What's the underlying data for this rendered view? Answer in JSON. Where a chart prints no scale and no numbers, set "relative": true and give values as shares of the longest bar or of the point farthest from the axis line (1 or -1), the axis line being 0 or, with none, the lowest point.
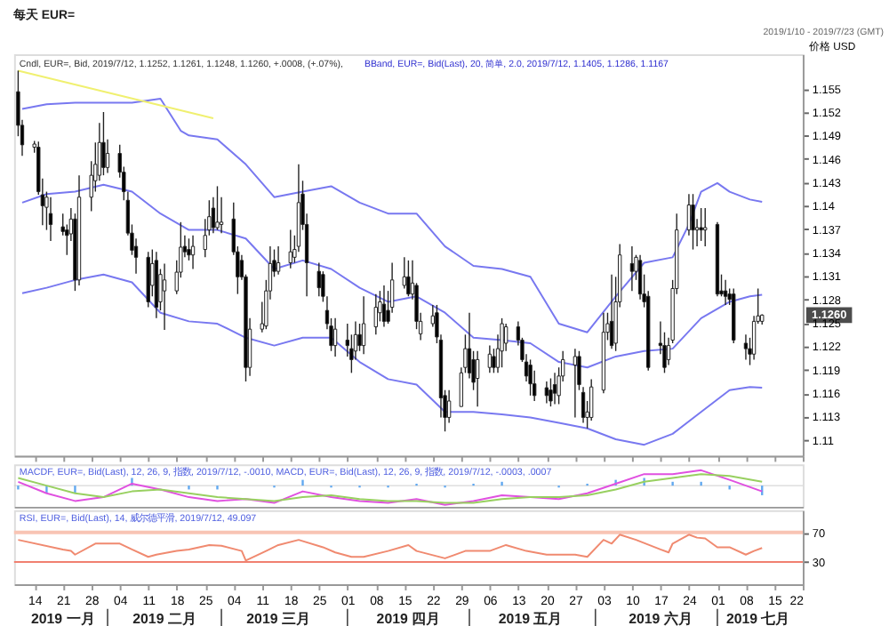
{
  "chart_data": [
    {
      "type": "candlestick",
      "title": "每天 EUR=",
      "subtitle": "Cndl, EUR=, Bid, 2019/7/12, 1.1252, 1.1261, 1.1248, 1.1260, +.0008, (+.07%),",
      "ylabel": "价格 USD",
      "annotations": [
        "BBand, EUR=, Bid(Last), 20, 简单, 2.0, 2019/7/12, 1.1405, 1.1286, 1.1167",
        "2019/1/10 - 2019/7/23 (GMT)",
        "1.1260"
      ],
      "xlim": [
        "2019-01-09",
        "2019-07-22"
      ],
      "xticks": [
        {
          "value": "2019-01-14",
          "label": null
        },
        {
          "value": "2019-01-21",
          "label": null
        },
        {
          "value": "2019-01-28",
          "label": null
        },
        {
          "value": "2019-02-04",
          "label": null
        },
        {
          "value": "2019-02-11",
          "label": null
        },
        {
          "value": "2019-02-18",
          "label": null
        },
        {
          "value": "2019-02-25",
          "label": null
        },
        {
          "value": "2019-03-04",
          "label": null
        },
        {
          "value": "2019-03-11",
          "label": null
        },
        {
          "value": "2019-03-18",
          "label": null
        },
        {
          "value": "2019-03-25",
          "label": null
        },
        {
          "value": "2019-04-01",
          "label": null
        },
        {
          "value": "2019-04-08",
          "label": null
        },
        {
          "value": "2019-04-15",
          "label": null
        },
        {
          "value": "2019-04-22",
          "label": null
        },
        {
          "value": "2019-04-29",
          "label": null
        },
        {
          "value": "2019-05-06",
          "label": null
        },
        {
          "value": "2019-05-13",
          "label": null
        },
        {
          "value": "2019-05-20",
          "label": null
        },
        {
          "value": "2019-05-27",
          "label": null
        },
        {
          "value": "2019-06-03",
          "label": null
        },
        {
          "value": "2019-06-10",
          "label": null
        },
        {
          "value": "2019-06-17",
          "label": null
        },
        {
          "value": "2019-06-24",
          "label": null
        },
        {
          "value": "2019-07-01",
          "label": null
        },
        {
          "value": "2019-07-08",
          "label": null
        },
        {
          "value": "2019-07-15",
          "label": null
        },
        {
          "value": "2019-07-22",
          "label": null
        }
      ],
      "tick_labels": "y",
      "ylim": [
        1.108,
        1.1594
      ],
      "yticks": [
        1.155,
        1.152,
        1.149,
        1.146,
        1.143,
        1.14,
        1.137,
        1.134,
        1.131,
        1.128,
        1.125,
        1.122,
        1.119,
        1.116,
        1.113,
        1.11
      ],
      "x": [
        "2019-01-10",
        "2019-01-11",
        "2019-01-14",
        "2019-01-15",
        "2019-01-16",
        "2019-01-17",
        "2019-01-18",
        "2019-01-21",
        "2019-01-22",
        "2019-01-23",
        "2019-01-24",
        "2019-01-25",
        "2019-01-28",
        "2019-01-29",
        "2019-01-30",
        "2019-01-31",
        "2019-02-01",
        "2019-02-04",
        "2019-02-05",
        "2019-02-06",
        "2019-02-07",
        "2019-02-08",
        "2019-02-11",
        "2019-02-12",
        "2019-02-13",
        "2019-02-14",
        "2019-02-15",
        "2019-02-18",
        "2019-02-19",
        "2019-02-20",
        "2019-02-21",
        "2019-02-22",
        "2019-02-25",
        "2019-02-26",
        "2019-02-27",
        "2019-02-28",
        "2019-03-01",
        "2019-03-04",
        "2019-03-05",
        "2019-03-06",
        "2019-03-07",
        "2019-03-08",
        "2019-03-11",
        "2019-03-12",
        "2019-03-13",
        "2019-03-14",
        "2019-03-15",
        "2019-03-18",
        "2019-03-19",
        "2019-03-20",
        "2019-03-21",
        "2019-03-22",
        "2019-03-25",
        "2019-03-26",
        "2019-03-27",
        "2019-03-28",
        "2019-03-29",
        "2019-04-01",
        "2019-04-02",
        "2019-04-03",
        "2019-04-04",
        "2019-04-05",
        "2019-04-08",
        "2019-04-09",
        "2019-04-10",
        "2019-04-11",
        "2019-04-12",
        "2019-04-15",
        "2019-04-16",
        "2019-04-17",
        "2019-04-18",
        "2019-04-19",
        "2019-04-22",
        "2019-04-23",
        "2019-04-24",
        "2019-04-25",
        "2019-04-26",
        "2019-04-29",
        "2019-04-30",
        "2019-05-01",
        "2019-05-02",
        "2019-05-03",
        "2019-05-06",
        "2019-05-07",
        "2019-05-08",
        "2019-05-09",
        "2019-05-10",
        "2019-05-13",
        "2019-05-14",
        "2019-05-15",
        "2019-05-16",
        "2019-05-17",
        "2019-05-20",
        "2019-05-21",
        "2019-05-22",
        "2019-05-23",
        "2019-05-24",
        "2019-05-27",
        "2019-05-28",
        "2019-05-29",
        "2019-05-30",
        "2019-05-31",
        "2019-06-03",
        "2019-06-04",
        "2019-06-05",
        "2019-06-06",
        "2019-06-07",
        "2019-06-10",
        "2019-06-11",
        "2019-06-12",
        "2019-06-13",
        "2019-06-14",
        "2019-06-17",
        "2019-06-18",
        "2019-06-19",
        "2019-06-20",
        "2019-06-21",
        "2019-06-24",
        "2019-06-25",
        "2019-06-26",
        "2019-06-27",
        "2019-06-28",
        "2019-07-01",
        "2019-07-02",
        "2019-07-03",
        "2019-07-04",
        "2019-07-05",
        "2019-07-08",
        "2019-07-09",
        "2019-07-10",
        "2019-07-11",
        "2019-07-12"
      ],
      "ohlc": [
        [
          1.1546,
          1.1573,
          1.1489,
          1.1503
        ],
        [
          1.1503,
          1.151,
          1.1464,
          1.1478
        ],
        [
          1.1475,
          1.1483,
          1.1468,
          1.1479
        ],
        [
          1.1475,
          1.1482,
          1.1414,
          1.1418
        ],
        [
          1.1414,
          1.1435,
          1.1375,
          1.14
        ],
        [
          1.1398,
          1.1418,
          1.1369,
          1.1411
        ],
        [
          1.139,
          1.1411,
          1.1355,
          1.1376
        ],
        [
          1.1373,
          1.139,
          1.1362,
          1.1367
        ],
        [
          1.1369,
          1.1376,
          1.1337,
          1.1362
        ],
        [
          1.1364,
          1.1397,
          1.1355,
          1.1383
        ],
        [
          1.1383,
          1.139,
          1.1291,
          1.1305
        ],
        [
          1.1305,
          1.1439,
          1.1298,
          1.1411
        ],
        [
          1.1411,
          1.1457,
          1.1393,
          1.1439
        ],
        [
          1.1432,
          1.1481,
          1.1418,
          1.1453
        ],
        [
          1.1439,
          1.1506,
          1.1432,
          1.1481
        ],
        [
          1.1481,
          1.152,
          1.1439,
          1.1449
        ],
        [
          1.1449,
          1.1485,
          1.1442,
          1.1467
        ],
        [
          1.1467,
          1.1478,
          1.1436,
          1.1443
        ],
        [
          1.1443,
          1.145,
          1.1407,
          1.1418
        ],
        [
          1.1407,
          1.1418,
          1.1362,
          1.1365
        ],
        [
          1.1365,
          1.1376,
          1.1337,
          1.1343
        ],
        [
          1.1348,
          1.1358,
          1.1313,
          1.1334
        ],
        [
          1.1334,
          1.1341,
          1.127,
          1.1277
        ],
        [
          1.1298,
          1.1344,
          1.1284,
          1.1326
        ],
        [
          1.133,
          1.1341,
          1.1256,
          1.127
        ],
        [
          1.1277,
          1.1319,
          1.1266,
          1.1312
        ],
        [
          1.1291,
          1.1326,
          1.1241,
          1.1305
        ],
        [
          1.1291,
          1.133,
          1.1287,
          1.1315
        ],
        [
          1.1315,
          1.1379,
          1.1308,
          1.1347
        ],
        [
          1.1348,
          1.1362,
          1.1334,
          1.1341
        ],
        [
          1.1344,
          1.1358,
          1.133,
          1.1337
        ],
        [
          1.1337,
          1.1362,
          1.1319,
          1.1348
        ],
        [
          1.1344,
          1.1383,
          1.1334,
          1.1362
        ],
        [
          1.1369,
          1.1407,
          1.1362,
          1.1386
        ],
        [
          1.1397,
          1.1411,
          1.1365,
          1.1372
        ],
        [
          1.1372,
          1.1425,
          1.1369,
          1.1379
        ],
        [
          1.1376,
          1.1411,
          1.1365,
          1.1379
        ],
        [
          1.1383,
          1.1404,
          1.1337,
          1.1341
        ],
        [
          1.1341,
          1.1348,
          1.1287,
          1.1309
        ],
        [
          1.133,
          1.1337,
          1.1305,
          1.1309
        ],
        [
          1.1309,
          1.1312,
          1.1175,
          1.1193
        ],
        [
          1.1193,
          1.1256,
          1.1182,
          1.1242
        ],
        [
          1.1242,
          1.1277,
          1.1238,
          1.1249
        ],
        [
          1.1246,
          1.1305,
          1.1242,
          1.1291
        ],
        [
          1.1291,
          1.1348,
          1.128,
          1.1326
        ],
        [
          1.133,
          1.1344,
          1.1309,
          1.1316
        ],
        [
          1.1316,
          1.1348,
          1.1312,
          1.1327
        ],
        [
          1.1327,
          1.1369,
          1.132,
          1.1341
        ],
        [
          1.1334,
          1.1362,
          1.1327,
          1.1344
        ],
        [
          1.1348,
          1.1453,
          1.1341,
          1.1404
        ],
        [
          1.1415,
          1.1432,
          1.1369,
          1.1376
        ],
        [
          1.1376,
          1.139,
          1.1284,
          1.1327
        ],
        [
          1.1316,
          1.1327,
          1.1284,
          1.1295
        ],
        [
          1.1312,
          1.1316,
          1.1277,
          1.1284
        ],
        [
          1.1266,
          1.1284,
          1.1242,
          1.1249
        ],
        [
          1.1246,
          1.1256,
          1.1214,
          1.1221
        ],
        [
          1.1221,
          1.1256,
          1.1207,
          1.1242
        ],
        [
          1.1228,
          1.1249,
          1.1207,
          1.1221
        ],
        [
          1.1217,
          1.1235,
          1.1186,
          1.1203
        ],
        [
          1.1214,
          1.1252,
          1.1203,
          1.1235
        ],
        [
          1.1235,
          1.1249,
          1.1214,
          1.1221
        ],
        [
          1.1221,
          1.1284,
          1.121,
          1.1249
        ],
        [
          1.1245,
          1.1287,
          1.1235,
          1.127
        ],
        [
          1.1263,
          1.1291,
          1.1252,
          1.1277
        ],
        [
          1.1274,
          1.1298,
          1.1245,
          1.1252
        ],
        [
          1.1266,
          1.1291,
          1.1249,
          1.1252
        ],
        [
          1.127,
          1.1327,
          1.1263,
          1.1305
        ],
        [
          1.1298,
          1.1334,
          1.1294,
          1.1309
        ],
        [
          1.1309,
          1.133,
          1.1284,
          1.1287
        ],
        [
          1.1287,
          1.133,
          1.128,
          1.1301
        ],
        [
          1.1298,
          1.1301,
          1.1242,
          1.1252
        ],
        [
          1.1236,
          1.1263,
          1.1228,
          1.1252
        ],
        [
          1.1249,
          1.1273,
          1.1245,
          1.1259
        ],
        [
          1.1263,
          1.1273,
          1.1224,
          1.1232
        ],
        [
          1.1228,
          1.1235,
          1.1129,
          1.1154
        ],
        [
          1.1157,
          1.1164,
          1.1111,
          1.1129
        ],
        [
          1.1129,
          1.1164,
          1.1122,
          1.115
        ],
        [
          1.1143,
          1.1193,
          1.1143,
          1.1186
        ],
        [
          1.1193,
          1.1235,
          1.1186,
          1.1217
        ],
        [
          1.1217,
          1.1263,
          1.1179,
          1.1186
        ],
        [
          1.1203,
          1.1214,
          1.1164,
          1.1174
        ],
        [
          1.1179,
          1.1214,
          1.1143,
          1.1203
        ],
        [
          1.1193,
          1.1221,
          1.1186,
          1.121
        ],
        [
          1.1207,
          1.1217,
          1.1186,
          1.1193
        ],
        [
          1.1193,
          1.1235,
          1.1186,
          1.1217
        ],
        [
          1.1214,
          1.1256,
          1.1193,
          1.1249
        ],
        [
          1.1224,
          1.1249,
          1.1214,
          1.1245
        ],
        [
          1.1245,
          1.1252,
          1.1221,
          1.1228
        ],
        [
          1.1228,
          1.1231,
          1.12,
          1.1203
        ],
        [
          1.12,
          1.121,
          1.1175,
          1.1182
        ],
        [
          1.1196,
          1.1203,
          1.1157,
          1.1172
        ],
        [
          1.1172,
          1.1189,
          1.115,
          1.1157
        ],
        [
          1.1167,
          1.1175,
          1.1147,
          1.1157
        ],
        [
          1.1164,
          1.1179,
          1.1143,
          1.115
        ],
        [
          1.1171,
          1.1186,
          1.1146,
          1.116
        ],
        [
          1.1157,
          1.1193,
          1.1146,
          1.1182
        ],
        [
          1.1182,
          1.1214,
          1.1175,
          1.1203
        ],
        [
          1.1196,
          1.1217,
          1.1129,
          1.1207
        ],
        [
          1.1207,
          1.1214,
          1.1164,
          1.1171
        ],
        [
          1.1161,
          1.1168,
          1.1122,
          1.1129
        ],
        [
          1.1129,
          1.115,
          1.1115,
          1.1136
        ],
        [
          1.1129,
          1.1178,
          1.1125,
          1.1168
        ],
        [
          1.1164,
          1.1263,
          1.116,
          1.1238
        ],
        [
          1.1238,
          1.1263,
          1.1228,
          1.1249
        ],
        [
          1.1252,
          1.1312,
          1.1217,
          1.1221
        ],
        [
          1.1224,
          1.1309,
          1.1214,
          1.1277
        ],
        [
          1.1277,
          1.1351,
          1.127,
          1.1337
        ],
        [
          1.1326,
          1.1348,
          1.1291,
          1.1316
        ],
        [
          1.1316,
          1.1337,
          1.1305,
          1.1334
        ],
        [
          1.133,
          1.1337,
          1.128,
          1.1287
        ],
        [
          1.1287,
          1.1312,
          1.127,
          1.1277
        ],
        [
          1.1284,
          1.1291,
          1.1189,
          1.1193
        ],
        [
          1.1224,
          1.1252,
          1.121,
          1.1221
        ],
        [
          1.1221,
          1.1238,
          1.1186,
          1.1193
        ],
        [
          1.1203,
          1.1231,
          1.1196,
          1.1221
        ],
        [
          1.1228,
          1.1305,
          1.1224,
          1.1294
        ],
        [
          1.1294,
          1.139,
          1.1287,
          1.1369
        ],
        [
          1.1369,
          1.1415,
          1.1362,
          1.1401
        ],
        [
          1.1401,
          1.1415,
          1.1344,
          1.1369
        ],
        [
          1.1369,
          1.1383,
          1.1348,
          1.1372
        ],
        [
          1.1372,
          1.1397,
          1.1355,
          1.1369
        ],
        [
          1.1369,
          1.1397,
          1.1348,
          1.1372
        ],
        [
          1.1376,
          1.1379,
          1.1284,
          1.1287
        ],
        [
          1.1291,
          1.1312,
          1.1284,
          1.1287
        ],
        [
          1.1291,
          1.1305,
          1.1273,
          1.1284
        ],
        [
          1.1287,
          1.1294,
          1.1273,
          1.128
        ],
        [
          1.1287,
          1.1294,
          1.1224,
          1.1228
        ],
        [
          1.1224,
          1.1235,
          1.1203,
          1.1217
        ],
        [
          1.1217,
          1.1231,
          1.1196,
          1.121
        ],
        [
          1.121,
          1.1259,
          1.1203,
          1.1252
        ],
        [
          1.1252,
          1.1294,
          1.1249,
          1.1259
        ],
        [
          1.1252,
          1.1261,
          1.1248,
          1.126
        ]
      ],
      "series": [
        {
          "type": "line",
          "color": "#7878f0",
          "x": [
            "2019-01-11",
            "2019-01-17",
            "2019-01-24",
            "2019-01-31",
            "2019-02-07",
            "2019-02-14",
            "2019-02-19",
            "2019-02-21",
            "2019-02-28",
            "2019-03-07",
            "2019-03-14",
            "2019-03-21",
            "2019-03-28",
            "2019-04-04",
            "2019-04-11",
            "2019-04-18",
            "2019-04-25",
            "2019-05-02",
            "2019-05-09",
            "2019-05-16",
            "2019-05-23",
            "2019-05-30",
            "2019-06-06",
            "2019-06-13",
            "2019-06-20",
            "2019-06-24",
            "2019-06-27",
            "2019-07-01",
            "2019-07-04",
            "2019-07-09",
            "2019-07-12"
          ],
          "values": [
            1.1524,
            1.153,
            1.1532,
            1.1532,
            1.1532,
            1.1537,
            1.1496,
            1.149,
            1.1485,
            1.1453,
            1.1411,
            1.1418,
            1.1425,
            1.1404,
            1.139,
            1.139,
            1.1348,
            1.1323,
            1.1319,
            1.1309,
            1.1249,
            1.1238,
            1.1284,
            1.1327,
            1.1334,
            1.1376,
            1.1418,
            1.1429,
            1.1418,
            1.1408,
            1.1405
          ]
        },
        {
          "type": "line",
          "color": "#7878f0",
          "x": [
            "2019-01-11",
            "2019-01-17",
            "2019-01-24",
            "2019-01-31",
            "2019-02-07",
            "2019-02-14",
            "2019-02-21",
            "2019-02-28",
            "2019-03-07",
            "2019-03-14",
            "2019-03-21",
            "2019-03-28",
            "2019-04-04",
            "2019-04-11",
            "2019-04-18",
            "2019-04-25",
            "2019-05-02",
            "2019-05-09",
            "2019-05-16",
            "2019-05-23",
            "2019-05-30",
            "2019-06-06",
            "2019-06-13",
            "2019-06-20",
            "2019-06-27",
            "2019-07-04",
            "2019-07-09",
            "2019-07-12"
          ],
          "values": [
            1.1404,
            1.1415,
            1.1418,
            1.1427,
            1.1418,
            1.139,
            1.1369,
            1.1369,
            1.1358,
            1.1319,
            1.133,
            1.1319,
            1.1295,
            1.1277,
            1.1284,
            1.1263,
            1.1231,
            1.1228,
            1.1224,
            1.12,
            1.1193,
            1.1207,
            1.1214,
            1.1217,
            1.1256,
            1.1277,
            1.1284,
            1.1286
          ]
        },
        {
          "type": "line",
          "color": "#7878f0",
          "x": [
            "2019-01-11",
            "2019-01-17",
            "2019-01-24",
            "2019-01-31",
            "2019-02-07",
            "2019-02-14",
            "2019-02-21",
            "2019-02-28",
            "2019-03-07",
            "2019-03-14",
            "2019-03-21",
            "2019-03-28",
            "2019-04-04",
            "2019-04-11",
            "2019-04-18",
            "2019-04-25",
            "2019-05-02",
            "2019-05-09",
            "2019-05-16",
            "2019-05-23",
            "2019-05-30",
            "2019-06-06",
            "2019-06-13",
            "2019-06-20",
            "2019-06-27",
            "2019-07-04",
            "2019-07-09",
            "2019-07-12"
          ],
          "values": [
            1.1288,
            1.1295,
            1.1305,
            1.1312,
            1.1302,
            1.1263,
            1.1252,
            1.1249,
            1.1231,
            1.1221,
            1.1231,
            1.1231,
            1.12,
            1.1178,
            1.1171,
            1.1136,
            1.1136,
            1.1133,
            1.1129,
            1.1122,
            1.1115,
            1.1101,
            1.1094,
            1.1108,
            1.1136,
            1.1164,
            1.1168,
            1.1167
          ]
        },
        {
          "type": "line",
          "color": "#f0f070",
          "x": [
            "2019-01-10",
            "2019-02-27"
          ],
          "values": [
            1.1573,
            1.1512
          ]
        }
      ]
    },
    {
      "type": "line",
      "relative": true,
      "tick_labels": false,
      "annotations": [
        "MACDF, EUR=, Bid(Last), 12, 26, 9, 指数, 2019/7/12, -.0010, MACD, EUR=, Bid(Last), 12, 26, 9, 指数, 2019/7/12, -.0003, .0007"
      ],
      "xlim": [
        "2019-01-09",
        "2019-07-22"
      ],
      "series": [
        {
          "type": "bar",
          "color": "#60a8f0",
          "x": [
            "2019-01-10",
            "2019-01-17",
            "2019-01-24",
            "2019-01-31",
            "2019-02-07",
            "2019-02-14",
            "2019-02-21",
            "2019-02-28",
            "2019-03-07",
            "2019-03-14",
            "2019-03-21",
            "2019-03-28",
            "2019-04-04",
            "2019-04-11",
            "2019-04-18",
            "2019-04-25",
            "2019-05-02",
            "2019-05-09",
            "2019-05-16",
            "2019-05-23",
            "2019-05-30",
            "2019-06-06",
            "2019-06-13",
            "2019-06-20",
            "2019-06-27",
            "2019-07-04",
            "2019-07-12"
          ],
          "values": [
            -0.2,
            -0.4,
            -0.4,
            0,
            0.4,
            0,
            -0.2,
            -0.2,
            0,
            -0.1,
            0.3,
            -0.1,
            -0.1,
            -0.1,
            0.1,
            -0.1,
            0.1,
            0.2,
            0,
            -0.1,
            0.1,
            0.3,
            0.4,
            0.2,
            0.2,
            -0.2,
            -0.5
          ]
        },
        {
          "type": "line",
          "color": "#e050e0",
          "x": [
            "2019-01-10",
            "2019-01-17",
            "2019-01-24",
            "2019-01-31",
            "2019-02-07",
            "2019-02-14",
            "2019-02-21",
            "2019-02-28",
            "2019-03-07",
            "2019-03-14",
            "2019-03-21",
            "2019-03-28",
            "2019-04-04",
            "2019-04-11",
            "2019-04-18",
            "2019-04-25",
            "2019-05-02",
            "2019-05-09",
            "2019-05-16",
            "2019-05-23",
            "2019-05-30",
            "2019-06-06",
            "2019-06-13",
            "2019-06-20",
            "2019-06-27",
            "2019-07-04",
            "2019-07-12"
          ],
          "values": [
            0.2,
            -0.4,
            -0.8,
            -0.6,
            0.1,
            -0.2,
            -0.6,
            -0.8,
            -0.7,
            -0.9,
            -0.3,
            -0.6,
            -0.8,
            -0.9,
            -0.7,
            -1.0,
            -0.8,
            -0.5,
            -0.6,
            -0.7,
            -0.4,
            0.1,
            0.6,
            0.6,
            0.8,
            0.3,
            -0.3
          ]
        },
        {
          "type": "line",
          "color": "#98d060",
          "x": [
            "2019-01-10",
            "2019-01-17",
            "2019-01-24",
            "2019-01-31",
            "2019-02-07",
            "2019-02-14",
            "2019-02-21",
            "2019-02-28",
            "2019-03-07",
            "2019-03-14",
            "2019-03-21",
            "2019-03-28",
            "2019-04-04",
            "2019-04-11",
            "2019-04-18",
            "2019-04-25",
            "2019-05-02",
            "2019-05-09",
            "2019-05-16",
            "2019-05-23",
            "2019-05-30",
            "2019-06-06",
            "2019-06-13",
            "2019-06-20",
            "2019-06-27",
            "2019-07-04",
            "2019-07-12"
          ],
          "values": [
            0.4,
            0.0,
            -0.4,
            -0.6,
            -0.3,
            -0.2,
            -0.4,
            -0.6,
            -0.7,
            -0.8,
            -0.6,
            -0.5,
            -0.7,
            -0.8,
            -0.8,
            -0.9,
            -0.9,
            -0.7,
            -0.6,
            -0.6,
            -0.5,
            -0.2,
            0.2,
            0.4,
            0.6,
            0.5,
            0.2
          ]
        }
      ]
    },
    {
      "type": "line",
      "annotations": [
        "RSI, EUR=, Bid(Last), 14, 威尔德平滑, 2019/7/12, 49.097",
        "2019 一月",
        "2019 二月",
        "2019 三月",
        "2019 四月",
        "2019 五月",
        "2019 六月",
        "2019 七月"
      ],
      "xlim": [
        "2019-01-09",
        "2019-07-22"
      ],
      "xticks": [
        {
          "value": "2019-01-14",
          "label": "14"
        },
        {
          "value": "2019-01-21",
          "label": "21"
        },
        {
          "value": "2019-01-28",
          "label": "28"
        },
        {
          "value": "2019-02-04",
          "label": "04"
        },
        {
          "value": "2019-02-11",
          "label": "11"
        },
        {
          "value": "2019-02-18",
          "label": "18"
        },
        {
          "value": "2019-02-25",
          "label": "25"
        },
        {
          "value": "2019-03-04",
          "label": "04"
        },
        {
          "value": "2019-03-11",
          "label": "11"
        },
        {
          "value": "2019-03-18",
          "label": "18"
        },
        {
          "value": "2019-03-25",
          "label": "25"
        },
        {
          "value": "2019-04-01",
          "label": "01"
        },
        {
          "value": "2019-04-08",
          "label": "08"
        },
        {
          "value": "2019-04-15",
          "label": "15"
        },
        {
          "value": "2019-04-22",
          "label": "22"
        },
        {
          "value": "2019-04-29",
          "label": "29"
        },
        {
          "value": "2019-05-06",
          "label": "06"
        },
        {
          "value": "2019-05-13",
          "label": "13"
        },
        {
          "value": "2019-05-20",
          "label": "20"
        },
        {
          "value": "2019-05-27",
          "label": "27"
        },
        {
          "value": "2019-06-03",
          "label": "03"
        },
        {
          "value": "2019-06-10",
          "label": "10"
        },
        {
          "value": "2019-06-17",
          "label": "17"
        },
        {
          "value": "2019-06-24",
          "label": "24"
        },
        {
          "value": "2019-07-01",
          "label": "01"
        },
        {
          "value": "2019-07-08",
          "label": "08"
        },
        {
          "value": "2019-07-15",
          "label": "15"
        },
        {
          "value": "2019-07-22",
          "label": "22"
        }
      ],
      "ylim": [
        0,
        100
      ],
      "yticks": [
        30,
        70
      ],
      "ref_lines": [
        {
          "axis": "y",
          "value": 70,
          "color": "#f8c4b4"
        },
        {
          "axis": "y",
          "value": 30,
          "color": "#f08070"
        }
      ],
      "series": [
        {
          "color": "#f08a70",
          "x": [
            "2019-01-10",
            "2019-01-21",
            "2019-01-23",
            "2019-01-24",
            "2019-01-29",
            "2019-02-04",
            "2019-02-07",
            "2019-02-11",
            "2019-02-13",
            "2019-02-18",
            "2019-02-21",
            "2019-02-26",
            "2019-03-01",
            "2019-03-06",
            "2019-03-07",
            "2019-03-12",
            "2019-03-15",
            "2019-03-20",
            "2019-03-26",
            "2019-03-29",
            "2019-04-02",
            "2019-04-05",
            "2019-04-11",
            "2019-04-16",
            "2019-04-18",
            "2019-04-25",
            "2019-04-30",
            "2019-05-06",
            "2019-05-10",
            "2019-05-15",
            "2019-05-20",
            "2019-05-27",
            "2019-05-30",
            "2019-06-03",
            "2019-06-05",
            "2019-06-07",
            "2019-06-11",
            "2019-06-17",
            "2019-06-19",
            "2019-06-20",
            "2019-06-24",
            "2019-06-26",
            "2019-06-28",
            "2019-07-01",
            "2019-07-04",
            "2019-07-08",
            "2019-07-10",
            "2019-07-12"
          ],
          "values": [
            60,
            47,
            45,
            40,
            55,
            55,
            47,
            37,
            40,
            45,
            47,
            53,
            52,
            45,
            32,
            45,
            53,
            60,
            50,
            43,
            37,
            37,
            45,
            53,
            45,
            35,
            45,
            45,
            53,
            45,
            40,
            40,
            37,
            60,
            55,
            67,
            60,
            47,
            43,
            55,
            67,
            63,
            62,
            50,
            50,
            40,
            45,
            49
          ]
        }
      ]
    }
  ]
}
